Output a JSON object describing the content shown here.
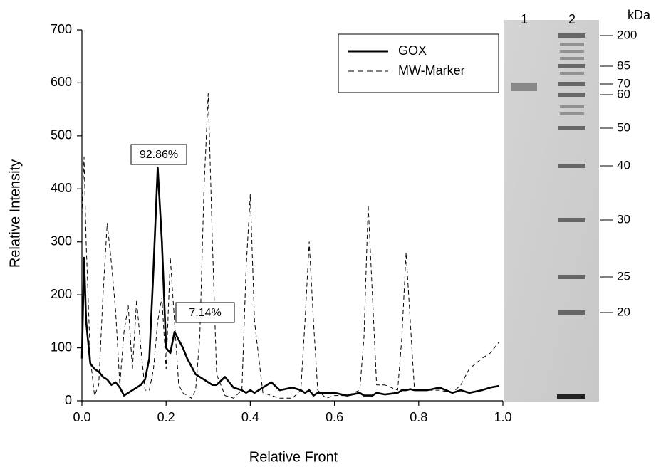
{
  "chart_data": {
    "type": "line",
    "xlabel": "Relative Front",
    "ylabel": "Relative Intensity",
    "xlim": [
      0,
      1
    ],
    "ylim": [
      0,
      700
    ],
    "xticks": [
      {
        "value": 0,
        "label": "0.0"
      },
      0.2,
      0.4,
      0.6,
      0.8,
      {
        "value": 1,
        "label": "1.0"
      }
    ],
    "yticks": [
      0,
      100,
      200,
      300,
      400,
      500,
      600,
      700
    ],
    "legend": "upper right",
    "x": [
      0,
      0.005,
      0.01,
      0.02,
      0.03,
      0.04,
      0.05,
      0.06,
      0.07,
      0.08,
      0.09,
      0.1,
      0.11,
      0.12,
      0.13,
      0.14,
      0.15,
      0.16,
      0.17,
      0.18,
      0.19,
      0.2,
      0.21,
      0.22,
      0.23,
      0.24,
      0.25,
      0.26,
      0.27,
      0.28,
      0.29,
      0.3,
      0.31,
      0.32,
      0.34,
      0.36,
      0.38,
      0.39,
      0.4,
      0.41,
      0.43,
      0.45,
      0.47,
      0.5,
      0.52,
      0.53,
      0.54,
      0.55,
      0.56,
      0.58,
      0.6,
      0.63,
      0.66,
      0.67,
      0.68,
      0.69,
      0.7,
      0.72,
      0.75,
      0.76,
      0.77,
      0.78,
      0.79,
      0.82,
      0.85,
      0.88,
      0.9,
      0.92,
      0.95,
      0.97,
      0.99
    ],
    "series": [
      {
        "name": "GOX",
        "color": "#000000",
        "style": "solid",
        "values": [
          80,
          270,
          150,
          70,
          60,
          55,
          45,
          40,
          30,
          35,
          25,
          10,
          15,
          20,
          25,
          30,
          40,
          80,
          250,
          440,
          300,
          100,
          90,
          130,
          115,
          100,
          80,
          65,
          50,
          45,
          40,
          35,
          30,
          30,
          45,
          25,
          20,
          15,
          20,
          15,
          25,
          35,
          20,
          25,
          20,
          15,
          20,
          10,
          15,
          15,
          15,
          10,
          15,
          10,
          10,
          10,
          15,
          12,
          15,
          20,
          20,
          22,
          20,
          20,
          25,
          15,
          20,
          15,
          20,
          25,
          28
        ]
      },
      {
        "name": "MW-Marker",
        "color": "#000000",
        "style": "dashed",
        "values": [
          350,
          460,
          300,
          80,
          10,
          30,
          200,
          335,
          260,
          170,
          30,
          130,
          180,
          60,
          190,
          100,
          20,
          20,
          60,
          150,
          195,
          60,
          270,
          150,
          30,
          15,
          10,
          5,
          20,
          120,
          400,
          580,
          300,
          50,
          10,
          5,
          20,
          250,
          390,
          150,
          15,
          10,
          5,
          5,
          20,
          150,
          300,
          150,
          20,
          5,
          10,
          10,
          20,
          120,
          370,
          200,
          30,
          30,
          20,
          120,
          280,
          150,
          20,
          20,
          20,
          15,
          30,
          60,
          80,
          90,
          110
        ]
      }
    ],
    "annotations": [
      "92.86%",
      "7.14%"
    ]
  },
  "gel": {
    "lanes": [
      "1",
      "2"
    ],
    "unit": "kDa",
    "markers": [
      "200",
      "85",
      "70",
      "60",
      "50",
      "40",
      "30",
      "25",
      "20"
    ]
  }
}
